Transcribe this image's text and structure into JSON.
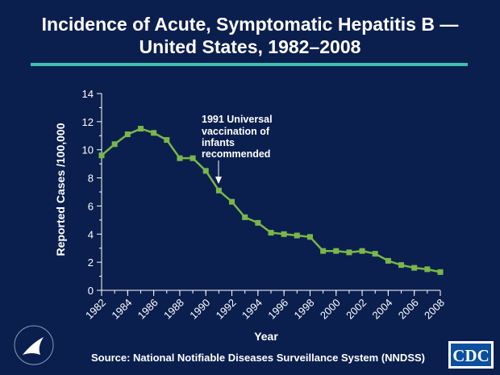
{
  "chart_data": {
    "type": "line",
    "title": [
      "Incidence of Acute, Symptomatic Hepatitis B —",
      "United States, 1982–2008"
    ],
    "x_label": "Year",
    "y_label": "Reported Cases /100,000",
    "x": [
      1982,
      1983,
      1984,
      1985,
      1986,
      1987,
      1988,
      1989,
      1990,
      1991,
      1992,
      1993,
      1994,
      1995,
      1996,
      1997,
      1998,
      1999,
      2000,
      2001,
      2002,
      2003,
      2004,
      2005,
      2006,
      2007,
      2008
    ],
    "series": [
      {
        "name": "Incidence",
        "color": "#7ab648",
        "values": [
          9.6,
          10.4,
          11.1,
          11.5,
          11.2,
          10.7,
          9.4,
          9.4,
          8.5,
          7.1,
          6.3,
          5.2,
          4.8,
          4.1,
          4.0,
          3.9,
          3.8,
          2.8,
          2.8,
          2.7,
          2.8,
          2.6,
          2.1,
          1.8,
          1.6,
          1.5,
          1.3
        ]
      }
    ],
    "xlim": [
      1982,
      2008
    ],
    "xticks": [
      1982,
      1984,
      1986,
      1988,
      1990,
      1992,
      1994,
      1996,
      1998,
      2000,
      2002,
      2004,
      2006,
      2008
    ],
    "ylim": [
      0,
      14
    ],
    "yticks": [
      0,
      2,
      4,
      6,
      8,
      10,
      12,
      14
    ],
    "annotation": [
      "1991 Universal",
      "vaccination of",
      "infants",
      "recommended"
    ],
    "source": "Source: National Notifiable Diseases Surveillance System (NNDSS)",
    "logo": "CDC"
  }
}
